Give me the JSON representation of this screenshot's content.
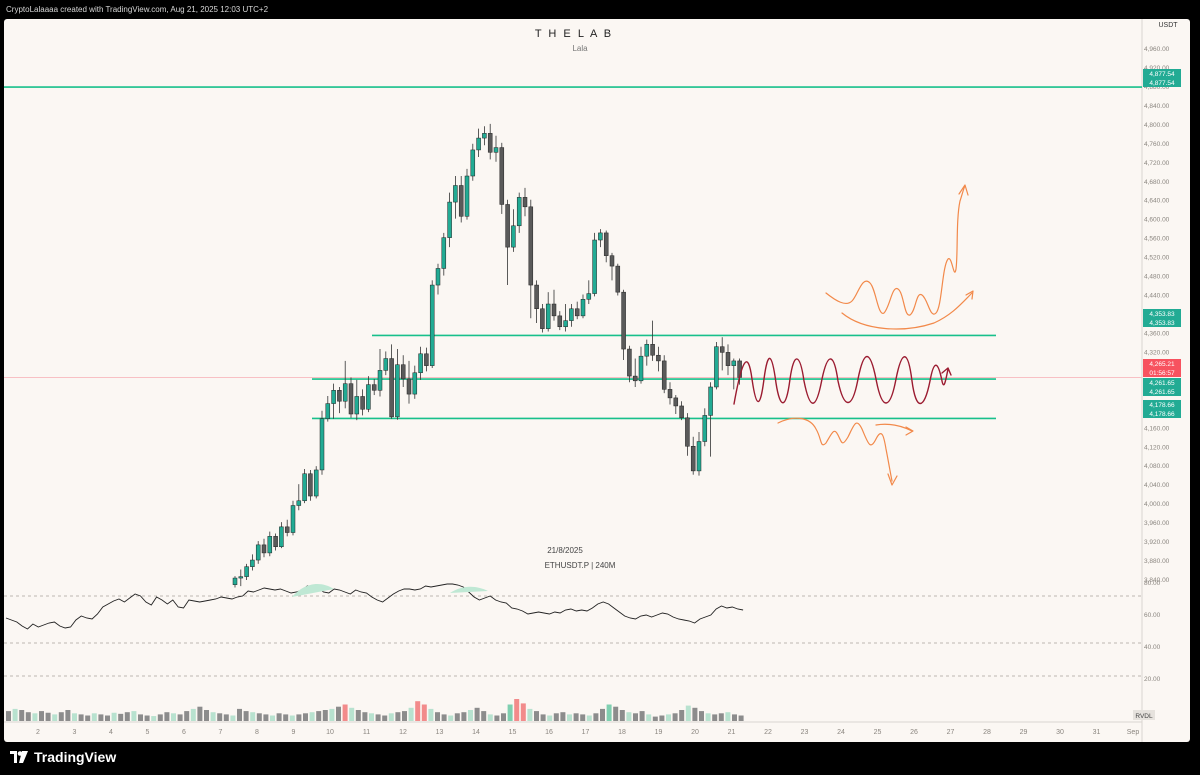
{
  "window": {
    "credit": "CryptoLalaaaa created with TradingView.com, Aug 21, 2025 12:03 UTC+2"
  },
  "chart": {
    "title": "T H E  L A B",
    "subtitle": "Lala",
    "watermark_date": "21/8/2025",
    "watermark_symbol": "ETHUSDT.P  |  240M",
    "currency": "USDT",
    "indicator_tag": "RVDL"
  },
  "price_axis": {
    "labels": [
      "4,960.00",
      "4,920.00",
      "4,880.00",
      "4,840.00",
      "4,800.00",
      "4,760.00",
      "4,720.00",
      "4,680.00",
      "4,640.00",
      "4,600.00",
      "4,560.00",
      "4,520.00",
      "4,480.00",
      "4,440.00",
      "4,400.00",
      "4,360.00",
      "4,320.00",
      "4,280.00",
      "4,240.00",
      "4,200.00",
      "4,160.00",
      "4,120.00",
      "4,080.00",
      "4,040.00",
      "4,000.00",
      "3,960.00",
      "3,920.00",
      "3,880.00",
      "3,840.00"
    ],
    "badges": [
      {
        "text": "4,877.54",
        "color": "#22ab94"
      },
      {
        "text": "4,877.54",
        "color": "#22ab94"
      },
      {
        "text": "4,353.83",
        "color": "#22ab94"
      },
      {
        "text": "4,353.83",
        "color": "#22ab94"
      },
      {
        "text": "4,265.21",
        "color": "#f7525f"
      },
      {
        "text": "01:56:57",
        "color": "#f7525f"
      },
      {
        "text": "4,261.65",
        "color": "#22ab94"
      },
      {
        "text": "4,261.65",
        "color": "#22ab94"
      },
      {
        "text": "4,178.66",
        "color": "#22ab94"
      },
      {
        "text": "4,178.66",
        "color": "#22ab94"
      }
    ]
  },
  "osc_axis": {
    "labels": [
      "80.00",
      "60.00",
      "40.00",
      "20.00"
    ]
  },
  "time_axis": {
    "labels": [
      "2",
      "3",
      "4",
      "5",
      "6",
      "7",
      "8",
      "9",
      "10",
      "11",
      "12",
      "13",
      "14",
      "15",
      "16",
      "17",
      "18",
      "19",
      "20",
      "21",
      "22",
      "23",
      "24",
      "25",
      "26",
      "27",
      "28",
      "29",
      "30",
      "31",
      "Sep"
    ]
  },
  "brand": {
    "name": "TradingView"
  },
  "colors": {
    "up": "#22ab94",
    "down": "#5a5a5a",
    "level": "#18c08b",
    "last_price": "#f7525f",
    "forecast_orange": "#f2894a",
    "forecast_red": "#9b1b30",
    "background": "#fbf7f3"
  },
  "chart_data": {
    "type": "candlestick",
    "symbol": "ETHUSDT.P",
    "interval": "240",
    "y_range": [
      3820,
      4980
    ],
    "levels": [
      4877.54,
      4353.83,
      4261.65,
      4178.66
    ],
    "last_price": 4265.21,
    "candles": [
      [
        3828,
        3842,
        3822,
        3846
      ],
      [
        3842,
        3845,
        3825,
        3860
      ],
      [
        3845,
        3866,
        3838,
        3872
      ],
      [
        3866,
        3880,
        3858,
        3892
      ],
      [
        3880,
        3912,
        3872,
        3920
      ],
      [
        3912,
        3895,
        3886,
        3925
      ],
      [
        3895,
        3930,
        3888,
        3940
      ],
      [
        3930,
        3908,
        3900,
        3936
      ],
      [
        3908,
        3950,
        3905,
        3960
      ],
      [
        3950,
        3938,
        3930,
        3965
      ],
      [
        3938,
        3995,
        3932,
        4005
      ],
      [
        3995,
        4005,
        3985,
        4040
      ],
      [
        4005,
        4062,
        4000,
        4072
      ],
      [
        4062,
        4015,
        4005,
        4070
      ],
      [
        4015,
        4070,
        4010,
        4078
      ],
      [
        4070,
        4178,
        4060,
        4195
      ],
      [
        4178,
        4210,
        4172,
        4226
      ],
      [
        4210,
        4238,
        4178,
        4252
      ],
      [
        4238,
        4215,
        4190,
        4245
      ],
      [
        4215,
        4252,
        4200,
        4300
      ],
      [
        4252,
        4188,
        4180,
        4265
      ],
      [
        4188,
        4225,
        4175,
        4260
      ],
      [
        4225,
        4198,
        4185,
        4240
      ],
      [
        4198,
        4250,
        4192,
        4268
      ],
      [
        4250,
        4238,
        4228,
        4262
      ],
      [
        4238,
        4280,
        4225,
        4325
      ],
      [
        4280,
        4305,
        4270,
        4320
      ],
      [
        4305,
        4182,
        4178,
        4335
      ],
      [
        4182,
        4292,
        4176,
        4325
      ],
      [
        4292,
        4262,
        4245,
        4312
      ],
      [
        4262,
        4230,
        4210,
        4300
      ],
      [
        4230,
        4275,
        4220,
        4290
      ],
      [
        4275,
        4315,
        4260,
        4330
      ],
      [
        4315,
        4290,
        4278,
        4328
      ],
      [
        4290,
        4460,
        4285,
        4470
      ],
      [
        4460,
        4495,
        4440,
        4505
      ],
      [
        4495,
        4560,
        4480,
        4570
      ],
      [
        4560,
        4635,
        4540,
        4655
      ],
      [
        4635,
        4670,
        4600,
        4690
      ],
      [
        4670,
        4605,
        4592,
        4690
      ],
      [
        4605,
        4690,
        4598,
        4705
      ],
      [
        4690,
        4745,
        4680,
        4758
      ],
      [
        4745,
        4770,
        4730,
        4790
      ],
      [
        4770,
        4780,
        4755,
        4795
      ],
      [
        4780,
        4740,
        4725,
        4800
      ],
      [
        4740,
        4750,
        4720,
        4775
      ],
      [
        4750,
        4630,
        4610,
        4760
      ],
      [
        4630,
        4540,
        4460,
        4640
      ],
      [
        4540,
        4585,
        4530,
        4620
      ],
      [
        4585,
        4645,
        4570,
        4655
      ],
      [
        4645,
        4625,
        4605,
        4665
      ],
      [
        4625,
        4460,
        4390,
        4640
      ],
      [
        4460,
        4410,
        4380,
        4470
      ],
      [
        4410,
        4368,
        4360,
        4420
      ],
      [
        4368,
        4420,
        4362,
        4445
      ],
      [
        4420,
        4395,
        4385,
        4450
      ],
      [
        4395,
        4372,
        4365,
        4405
      ],
      [
        4372,
        4385,
        4362,
        4420
      ],
      [
        4385,
        4410,
        4372,
        4420
      ],
      [
        4410,
        4395,
        4388,
        4425
      ],
      [
        4395,
        4430,
        4390,
        4440
      ],
      [
        4430,
        4442,
        4420,
        4470
      ],
      [
        4442,
        4555,
        4436,
        4570
      ],
      [
        4555,
        4570,
        4540,
        4578
      ],
      [
        4570,
        4522,
        4508,
        4575
      ],
      [
        4522,
        4500,
        4470,
        4528
      ],
      [
        4500,
        4445,
        4438,
        4505
      ],
      [
        4445,
        4325,
        4302,
        4450
      ],
      [
        4325,
        4268,
        4255,
        4332
      ],
      [
        4268,
        4258,
        4245,
        4305
      ],
      [
        4258,
        4310,
        4252,
        4330
      ],
      [
        4310,
        4335,
        4290,
        4345
      ],
      [
        4335,
        4312,
        4300,
        4385
      ],
      [
        4312,
        4300,
        4278,
        4330
      ],
      [
        4300,
        4240,
        4232,
        4312
      ],
      [
        4240,
        4222,
        4208,
        4255
      ],
      [
        4222,
        4205,
        4188,
        4228
      ],
      [
        4205,
        4180,
        4175,
        4215
      ],
      [
        4180,
        4120,
        4100,
        4190
      ],
      [
        4120,
        4068,
        4060,
        4140
      ],
      [
        4068,
        4130,
        4058,
        4150
      ],
      [
        4130,
        4185,
        4120,
        4200
      ],
      [
        4185,
        4245,
        4098,
        4255
      ],
      [
        4245,
        4330,
        4240,
        4340
      ],
      [
        4330,
        4318,
        4280,
        4350
      ],
      [
        4318,
        4290,
        4270,
        4335
      ],
      [
        4290,
        4300,
        4240,
        4305
      ],
      [
        4300,
        4265,
        4250,
        4305
      ]
    ],
    "oscillator": [
      46,
      44,
      42,
      38,
      35,
      40,
      37,
      39,
      41,
      42,
      38,
      36,
      37,
      44,
      48,
      46,
      45,
      50,
      57,
      60,
      63,
      65,
      62,
      66,
      70,
      68,
      62,
      59,
      67,
      64,
      60,
      64,
      57,
      56,
      64,
      63,
      62,
      63,
      64,
      65,
      67,
      66,
      65,
      67,
      68,
      73,
      72,
      74,
      76,
      75,
      74,
      75,
      73,
      71,
      72,
      74,
      78,
      78,
      77,
      72,
      71,
      75,
      74,
      72,
      70,
      74,
      72,
      71,
      67,
      64,
      62,
      66,
      70,
      73,
      75,
      75,
      74,
      75,
      78,
      77,
      78,
      79,
      80,
      80,
      79,
      77,
      72,
      67,
      64,
      66,
      68,
      64,
      62,
      61,
      56,
      55,
      53,
      50,
      51,
      52,
      51,
      50,
      52,
      51,
      54,
      55,
      53,
      54,
      53,
      56,
      60,
      62,
      60,
      56,
      52,
      48,
      46,
      45,
      48,
      49,
      47,
      49,
      51,
      50,
      47,
      45,
      44,
      43,
      41,
      45,
      47,
      49,
      55,
      58,
      56,
      57,
      55,
      54
    ],
    "osc_range": [
      0,
      100
    ],
    "volume": [
      18,
      22,
      20,
      16,
      14,
      18,
      15,
      12,
      16,
      20,
      14,
      12,
      10,
      14,
      12,
      10,
      15,
      13,
      16,
      18,
      12,
      10,
      9,
      12,
      16,
      14,
      12,
      18,
      22,
      26,
      20,
      16,
      14,
      12,
      10,
      22,
      18,
      16,
      14,
      12,
      10,
      14,
      12,
      10,
      12,
      14,
      16,
      18,
      20,
      22,
      26,
      30,
      24,
      20,
      16,
      14,
      12,
      10,
      14,
      16,
      18,
      24,
      36,
      30,
      22,
      16,
      12,
      10,
      14,
      16,
      20,
      24,
      18,
      12,
      10,
      14,
      30,
      40,
      32,
      22,
      18,
      12,
      10,
      14,
      16,
      12,
      14,
      12,
      10,
      14,
      22,
      30,
      26,
      20,
      16,
      14,
      18,
      12,
      8,
      10,
      12,
      14,
      20,
      28,
      24,
      18,
      14,
      12,
      14,
      16,
      12,
      10
    ],
    "time_ticks": [
      "2",
      "3",
      "4",
      "5",
      "6",
      "7",
      "8",
      "9",
      "10",
      "11",
      "12",
      "13",
      "14",
      "15",
      "16",
      "17",
      "18",
      "19",
      "20",
      "21",
      "22",
      "23",
      "24",
      "25",
      "26",
      "27",
      "28",
      "29",
      "30",
      "31",
      "Sep"
    ]
  }
}
